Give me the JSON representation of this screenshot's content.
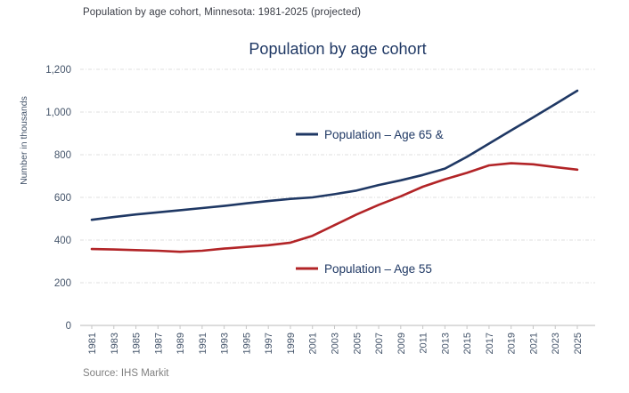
{
  "header": {
    "subtitle": "Population by age cohort, Minnesota: 1981-2025 (projected)"
  },
  "footer": {
    "source": "Source: IHS Markit"
  },
  "colors": {
    "title": "#1f3864",
    "age65_line": "#1f3864",
    "age55_line": "#b22427",
    "tick_label": "#44546a",
    "gridline": "#dfdfdf",
    "axis_line": "#c6c6c6",
    "source_text": "#808080"
  },
  "chart_data": {
    "type": "line",
    "title": "Population by age cohort",
    "xlabel": "",
    "ylabel": "Number in thousands",
    "ylim": [
      0,
      1200
    ],
    "ytick_interval": 200,
    "ytick_labels": [
      "0",
      "200",
      "400",
      "600",
      "800",
      "1,000",
      "1,200"
    ],
    "grid": "horizontal dashed",
    "legend_position": "inside plot, labels next to lines",
    "x": [
      1981,
      1983,
      1985,
      1987,
      1989,
      1991,
      1993,
      1995,
      1997,
      1999,
      2001,
      2003,
      2005,
      2007,
      2009,
      2011,
      2013,
      2015,
      2017,
      2019,
      2021,
      2023,
      2025
    ],
    "series": [
      {
        "name": "Population – Age 65 &",
        "color": "#1f3864",
        "values": [
          495,
          508,
          520,
          530,
          540,
          550,
          560,
          572,
          583,
          593,
          600,
          615,
          632,
          658,
          680,
          705,
          735,
          790,
          852,
          914,
          975,
          1037,
          1100
        ]
      },
      {
        "name": "Population – Age 55",
        "color": "#b22427",
        "values": [
          358,
          356,
          353,
          350,
          345,
          350,
          360,
          368,
          376,
          388,
          420,
          470,
          520,
          565,
          605,
          650,
          685,
          715,
          750,
          760,
          755,
          742,
          730
        ]
      }
    ]
  }
}
